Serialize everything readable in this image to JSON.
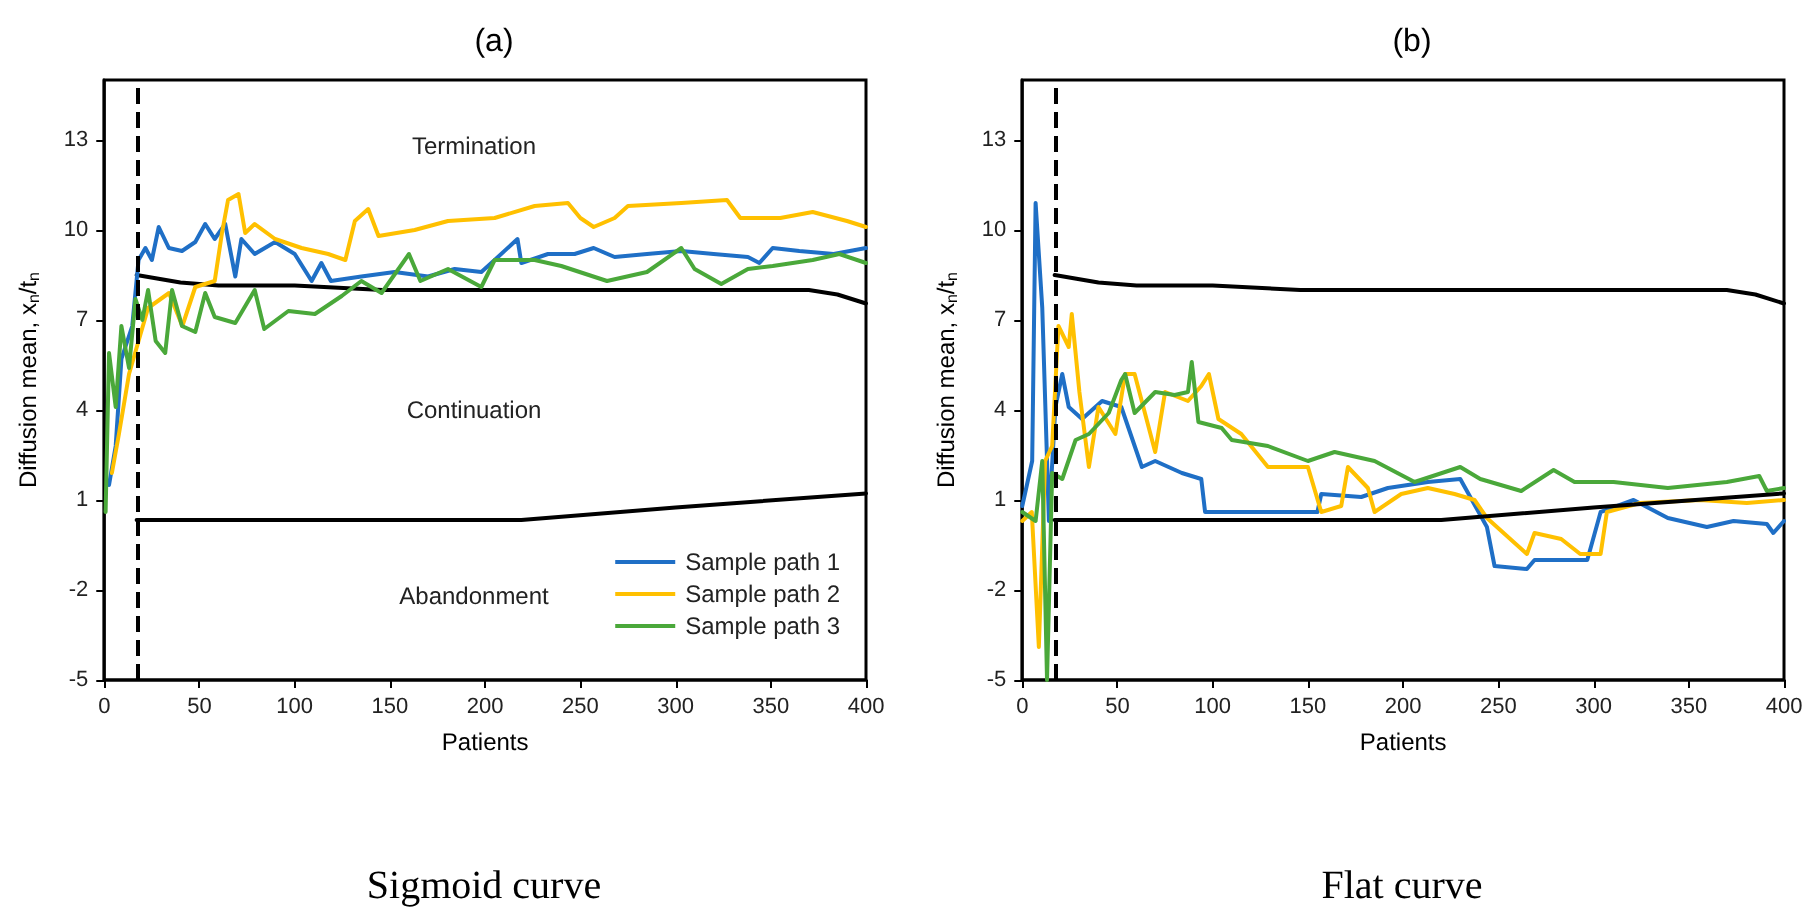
{
  "chart_data": [
    {
      "type": "line",
      "title": "(a)",
      "xlabel": "Patients",
      "ylabel": "Diffusion mean, x$_{n}$/t$_{n}$",
      "xlim": [
        0,
        400
      ],
      "xticks": [
        0,
        50,
        100,
        150,
        200,
        250,
        300,
        350,
        400
      ],
      "ylim": [
        -5,
        15
      ],
      "yticks": [
        -5,
        -2,
        1,
        4,
        7,
        10,
        13
      ],
      "grid": false,
      "legend": "bottom right",
      "marker": "none",
      "line_style": "solid",
      "series": [
        {
          "name": "Sample path 1",
          "color": "#1f6fc6",
          "x": [
            2.5,
            6,
            9,
            14.7,
            18,
            21.6,
            25,
            28.6,
            33.9,
            40.8,
            47.8,
            53,
            58,
            63.5,
            68.8,
            72,
            79,
            89.7,
            100,
            108.9,
            114,
            119,
            135,
            152.5,
            170,
            184,
            198,
            205,
            217,
            219,
            233,
            247,
            257,
            268,
            285,
            303,
            320,
            338,
            344,
            351,
            365,
            383,
            400
          ],
          "values": [
            1.5,
            2.8,
            5.7,
            6.8,
            9.0,
            9.4,
            9.0,
            10.1,
            9.4,
            9.3,
            9.6,
            10.2,
            9.7,
            10.2,
            8.45,
            9.7,
            9.2,
            9.6,
            9.2,
            8.3,
            8.9,
            8.3,
            8.45,
            8.6,
            8.45,
            8.7,
            8.6,
            9.0,
            9.7,
            8.9,
            9.2,
            9.2,
            9.4,
            9.1,
            9.2,
            9.3,
            9.2,
            9.1,
            8.9,
            9.4,
            9.3,
            9.2,
            9.4
          ]
        },
        {
          "name": "Sample path 2",
          "color": "#ffc000",
          "x": [
            4,
            7.7,
            13,
            18,
            23,
            34,
            41,
            47.8,
            58,
            61.8,
            65,
            70.5,
            74,
            79,
            89.7,
            103.6,
            117.6,
            126.6,
            131.6,
            138.6,
            144,
            163,
            180.5,
            205,
            226,
            243.5,
            250,
            257,
            268,
            275,
            303,
            327,
            334,
            355,
            372,
            390,
            400
          ],
          "values": [
            1.9,
            3.2,
            5.2,
            6.3,
            7.4,
            7.9,
            6.8,
            8.1,
            8.3,
            9.9,
            11.0,
            11.2,
            9.9,
            10.2,
            9.7,
            9.4,
            9.2,
            9.0,
            10.3,
            10.7,
            9.8,
            10.0,
            10.3,
            10.4,
            10.8,
            10.9,
            10.4,
            10.1,
            10.4,
            10.8,
            10.9,
            11.0,
            10.4,
            10.4,
            10.6,
            10.3,
            10.1
          ]
        },
        {
          "name": "Sample path 3",
          "color": "#4aa83a",
          "x": [
            0.7,
            2.5,
            6,
            9,
            13,
            16.4,
            20,
            23,
            27,
            32,
            35.6,
            40.8,
            47.8,
            53,
            58,
            68.8,
            79,
            84,
            96.7,
            110.6,
            124.7,
            135,
            145.6,
            160,
            166,
            180.5,
            198,
            205,
            226,
            240,
            264,
            285,
            303,
            310,
            324,
            338,
            351,
            372,
            386,
            400
          ],
          "values": [
            0.6,
            5.9,
            4.1,
            6.8,
            5.4,
            7.7,
            7.0,
            8.0,
            6.3,
            5.9,
            8.0,
            6.8,
            6.6,
            7.9,
            7.1,
            6.9,
            8.0,
            6.7,
            7.3,
            7.2,
            7.8,
            8.3,
            7.9,
            9.2,
            8.3,
            8.7,
            8.1,
            9.0,
            9.0,
            8.8,
            8.3,
            8.6,
            9.4,
            8.7,
            8.2,
            8.7,
            8.8,
            9.0,
            9.2,
            8.9
          ]
        },
        {
          "color": "#000000",
          "x": [
            17,
            40,
            60,
            100,
            146,
            200,
            300,
            370,
            385,
            400
          ],
          "values": [
            8.5,
            8.25,
            8.15,
            8.15,
            8.0,
            8.0,
            8.0,
            8.0,
            7.85,
            7.55
          ]
        },
        {
          "color": "#000000",
          "x": [
            17,
            100,
            219,
            300,
            400
          ],
          "values": [
            0.33,
            0.33,
            0.33,
            0.75,
            1.22
          ]
        }
      ],
      "ref_lines": [
        {
          "axis": "x",
          "value": 17,
          "color": "#000000",
          "line_style": "dashed"
        }
      ],
      "annotations": [
        "Termination",
        "Continuation",
        "Abandonment"
      ],
      "subtitle": "Sigmoid curve"
    },
    {
      "type": "line",
      "title": "(b)",
      "xlabel": "Patients",
      "ylabel": "Diffusion mean, x$_{n}$/t$_{n}$",
      "xlim": [
        0,
        400
      ],
      "xticks": [
        0,
        50,
        100,
        150,
        200,
        250,
        300,
        350,
        400
      ],
      "ylim": [
        -5,
        15
      ],
      "yticks": [
        -5,
        -2,
        1,
        4,
        7,
        10,
        13
      ],
      "grid": false,
      "legend": false,
      "marker": "none",
      "line_style": "solid",
      "series": [
        {
          "color": "#1f6fc6",
          "x": [
            0,
            5.2,
            7,
            10.5,
            14,
            17.4,
            21,
            24.4,
            31.4,
            41.9,
            52,
            62.8,
            69.8,
            83.8,
            94,
            96,
            111.7,
            136,
            155,
            157,
            178,
            192,
            213,
            230,
            244,
            248,
            265,
            269,
            296.7,
            303.7,
            321,
            339,
            359.5,
            373.5,
            391,
            394.4,
            400
          ],
          "values": [
            0.8,
            2.3,
            10.9,
            7.4,
            0.3,
            4.1,
            5.2,
            4.1,
            3.7,
            4.3,
            4.1,
            2.1,
            2.3,
            1.9,
            1.7,
            0.6,
            0.6,
            0.6,
            0.6,
            1.2,
            1.1,
            1.4,
            1.6,
            1.7,
            0.1,
            -1.2,
            -1.3,
            -1.0,
            -1.0,
            0.6,
            1.0,
            0.4,
            0.1,
            0.3,
            0.2,
            -0.1,
            0.3
          ]
        },
        {
          "color": "#ffc000",
          "x": [
            0,
            5,
            8.7,
            12,
            15.7,
            19,
            24.4,
            26,
            30,
            35,
            40,
            48.9,
            54,
            59,
            69.8,
            75,
            87,
            94,
            98,
            103,
            115,
            129,
            150,
            157,
            167.5,
            171,
            181.5,
            185,
            199,
            213,
            227,
            237.5,
            244,
            265,
            269,
            283,
            293,
            303.7,
            307,
            324.5,
            356,
            380.5,
            400
          ],
          "values": [
            0.3,
            0.6,
            -3.9,
            2.3,
            2.8,
            6.8,
            6.1,
            7.2,
            4.6,
            2.1,
            4.1,
            3.2,
            5.2,
            5.2,
            2.6,
            4.6,
            4.3,
            4.8,
            5.2,
            3.7,
            3.2,
            2.1,
            2.1,
            0.6,
            0.8,
            2.1,
            1.4,
            0.6,
            1.2,
            1.4,
            1.2,
            1.0,
            0.4,
            -0.8,
            -0.1,
            -0.3,
            -0.8,
            -0.8,
            0.6,
            0.9,
            1.0,
            0.9,
            1.0
          ]
        },
        {
          "color": "#4aa83a",
          "x": [
            0,
            7,
            10.5,
            13,
            15.7,
            21,
            28,
            35,
            45.4,
            52,
            54,
            59,
            69.8,
            80,
            87,
            89,
            92.5,
            104.7,
            110,
            129,
            150,
            164,
            185,
            206,
            230,
            240.5,
            262,
            279,
            290,
            310.5,
            339,
            370,
            387,
            391,
            400
          ],
          "values": [
            0.6,
            0.3,
            2.3,
            -5,
            1.9,
            1.7,
            3.0,
            3.2,
            3.9,
            5.0,
            5.2,
            3.9,
            4.6,
            4.5,
            4.6,
            5.6,
            3.6,
            3.4,
            3.0,
            2.8,
            2.3,
            2.6,
            2.3,
            1.6,
            2.1,
            1.7,
            1.3,
            2.0,
            1.6,
            1.6,
            1.4,
            1.6,
            1.8,
            1.3,
            1.4
          ]
        },
        {
          "color": "#000000",
          "x": [
            17,
            40,
            60,
            100,
            146,
            200,
            300,
            370,
            385,
            400
          ],
          "values": [
            8.5,
            8.25,
            8.15,
            8.15,
            8.0,
            8.0,
            8.0,
            8.0,
            7.85,
            7.55
          ]
        },
        {
          "color": "#000000",
          "x": [
            17,
            100,
            220,
            300,
            400
          ],
          "values": [
            0.33,
            0.33,
            0.33,
            0.75,
            1.22
          ]
        }
      ],
      "ref_lines": [
        {
          "axis": "x",
          "value": 17,
          "color": "#000000",
          "line_style": "dashed"
        }
      ],
      "subtitle": "Flat curve"
    }
  ]
}
